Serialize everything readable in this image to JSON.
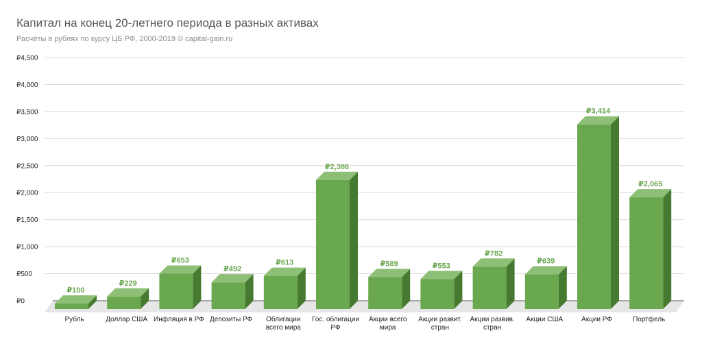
{
  "colors": {
    "bar_front": "#6aa84f",
    "bar_top": "#8dbf76",
    "bar_side": "#467a30",
    "data_label": "#6aa84f",
    "grid": "#d9d9d9",
    "floor": "#e6e6e6"
  },
  "chart_data": {
    "type": "bar",
    "title": "Капитал на конец 20-летнего периода в разных активах",
    "subtitle": "Расчёты в рублях по курсу ЦБ РФ, 2000-2019 © capital-gain.ru",
    "categories": [
      [
        "Рубль"
      ],
      [
        "Доллар США"
      ],
      [
        "Инфляция в РФ"
      ],
      [
        "Депозиты РФ"
      ],
      [
        "Облигации",
        "всего мира"
      ],
      [
        "Гос. облигации",
        "РФ"
      ],
      [
        "Акции всего",
        "мира"
      ],
      [
        "Акции развит.",
        "стран"
      ],
      [
        "Акции развив.",
        "стран"
      ],
      [
        "Акции США"
      ],
      [
        "Акции РФ"
      ],
      [
        "Портфель"
      ]
    ],
    "values": [
      100,
      229,
      653,
      492,
      613,
      2386,
      589,
      553,
      782,
      639,
      3414,
      2065
    ],
    "value_labels": [
      "₽100",
      "₽229",
      "₽653",
      "₽492",
      "₽613",
      "₽2,386",
      "₽589",
      "₽553",
      "₽782",
      "₽639",
      "₽3,414",
      "₽2,065"
    ],
    "ylim": [
      0,
      4500
    ],
    "yticks": [
      0,
      500,
      1000,
      1500,
      2000,
      2500,
      3000,
      3500,
      4000,
      4500
    ],
    "ytick_labels": [
      "₽0",
      "₽500",
      "₽1,000",
      "₽1,500",
      "₽2,000",
      "₽2,500",
      "₽3,000",
      "₽3,500",
      "₽4,000",
      "₽4,500"
    ],
    "grid": true,
    "legend": "none",
    "style": "3d-bar"
  }
}
